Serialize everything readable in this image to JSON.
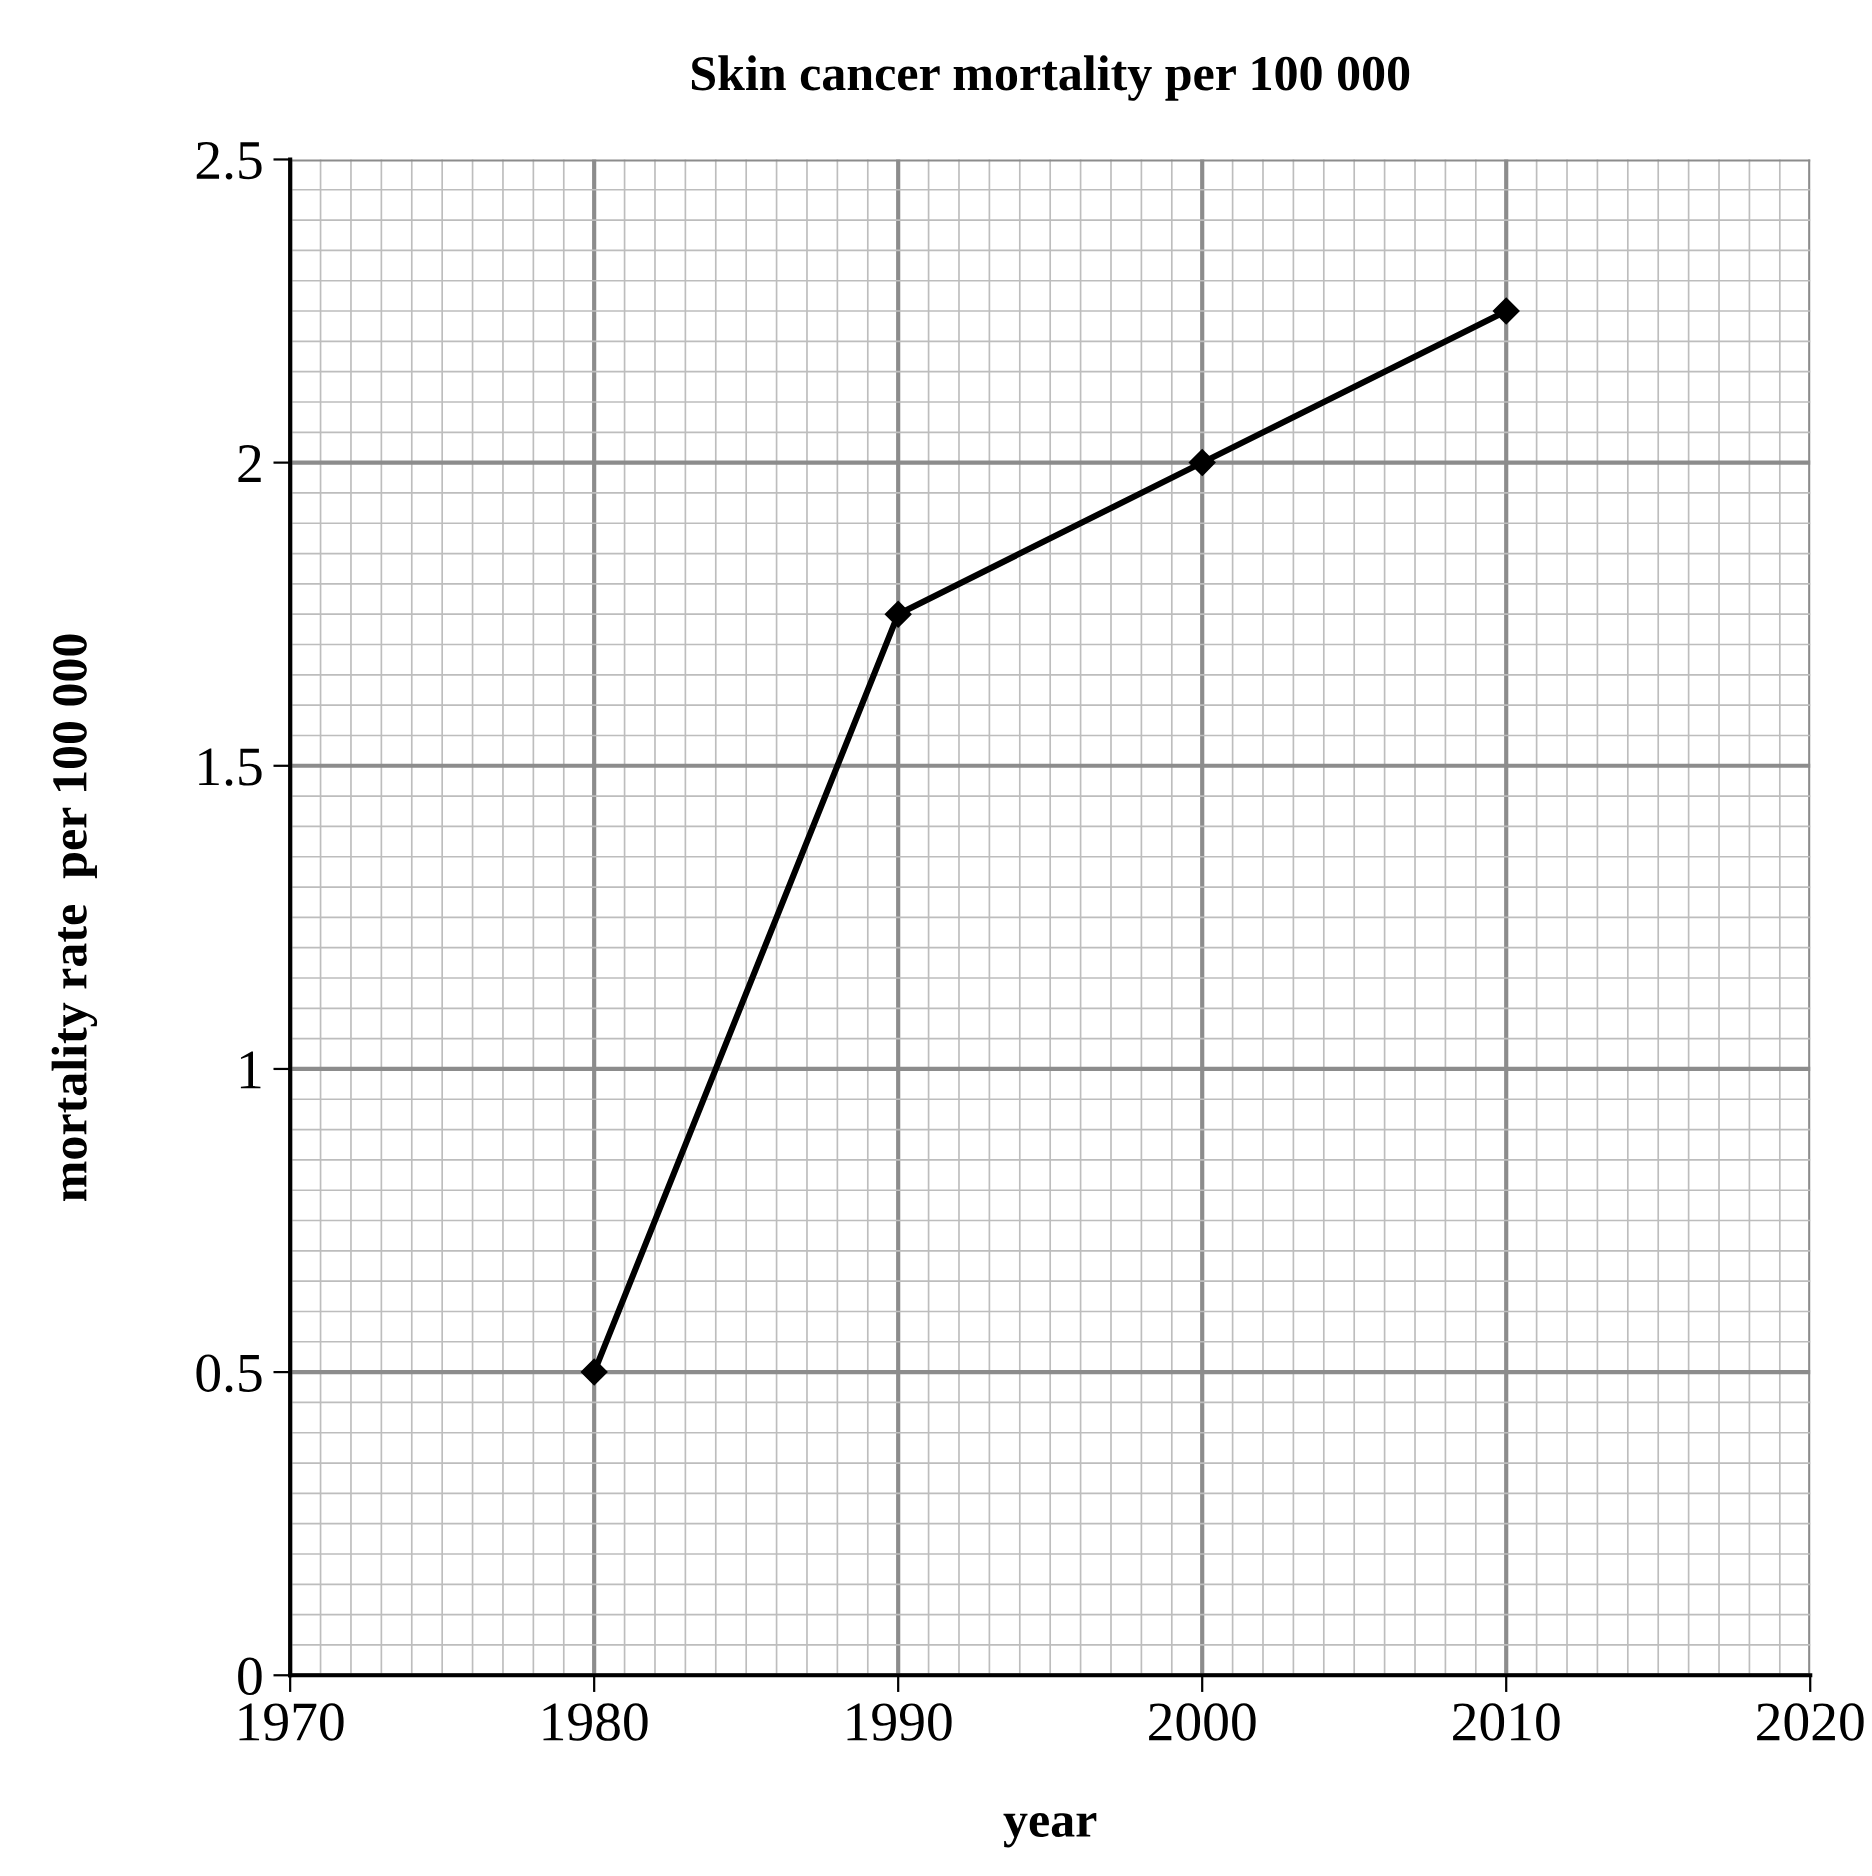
{
  "chart_data": {
    "type": "line",
    "title": "Skin cancer mortality per 100 000",
    "xlabel": "year",
    "ylabel": "mortality rate  per 100 000",
    "x": [
      1980,
      1990,
      2000,
      2010
    ],
    "series": [
      {
        "color": "#000000",
        "values": [
          0.5,
          1.75,
          2.0,
          2.25
        ]
      }
    ],
    "xlim": [
      1970,
      2020
    ],
    "xticks": [
      1970,
      1980,
      1990,
      2000,
      2010,
      2020
    ],
    "ylim": [
      0,
      2.5
    ],
    "yticks": [
      0,
      0.5,
      1,
      {
        "value": 1.5,
        "label": "1.5"
      },
      2,
      2.5
    ],
    "grid": true,
    "marker": "diamond",
    "line_style": "solid"
  }
}
